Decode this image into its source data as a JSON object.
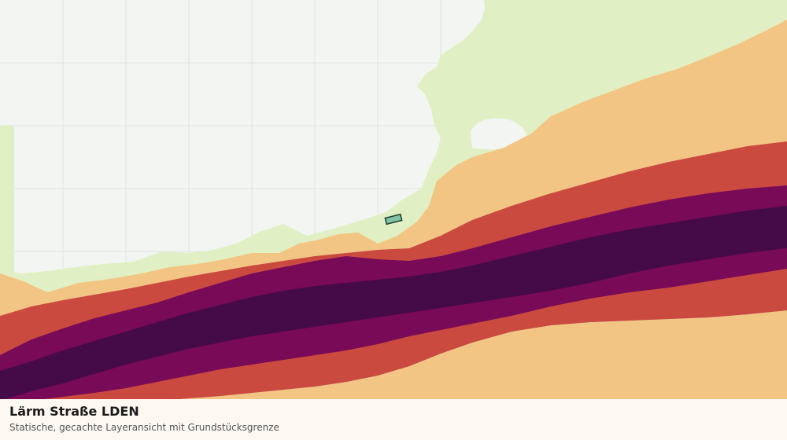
{
  "layer": {
    "title": "Lärm Straße LDEN",
    "subtitle": "Statische, gecachte Layeransicht mit Grundstücksgrenze"
  },
  "map": {
    "basemap_color": "#f3f5f3",
    "grid_color": "#e2e4e2",
    "noise_band_colors": [
      "#e1f0c4",
      "#f2c585",
      "#cb4a40",
      "#780a58",
      "#450a48"
    ],
    "parcel_color": "#7fc3a2"
  }
}
